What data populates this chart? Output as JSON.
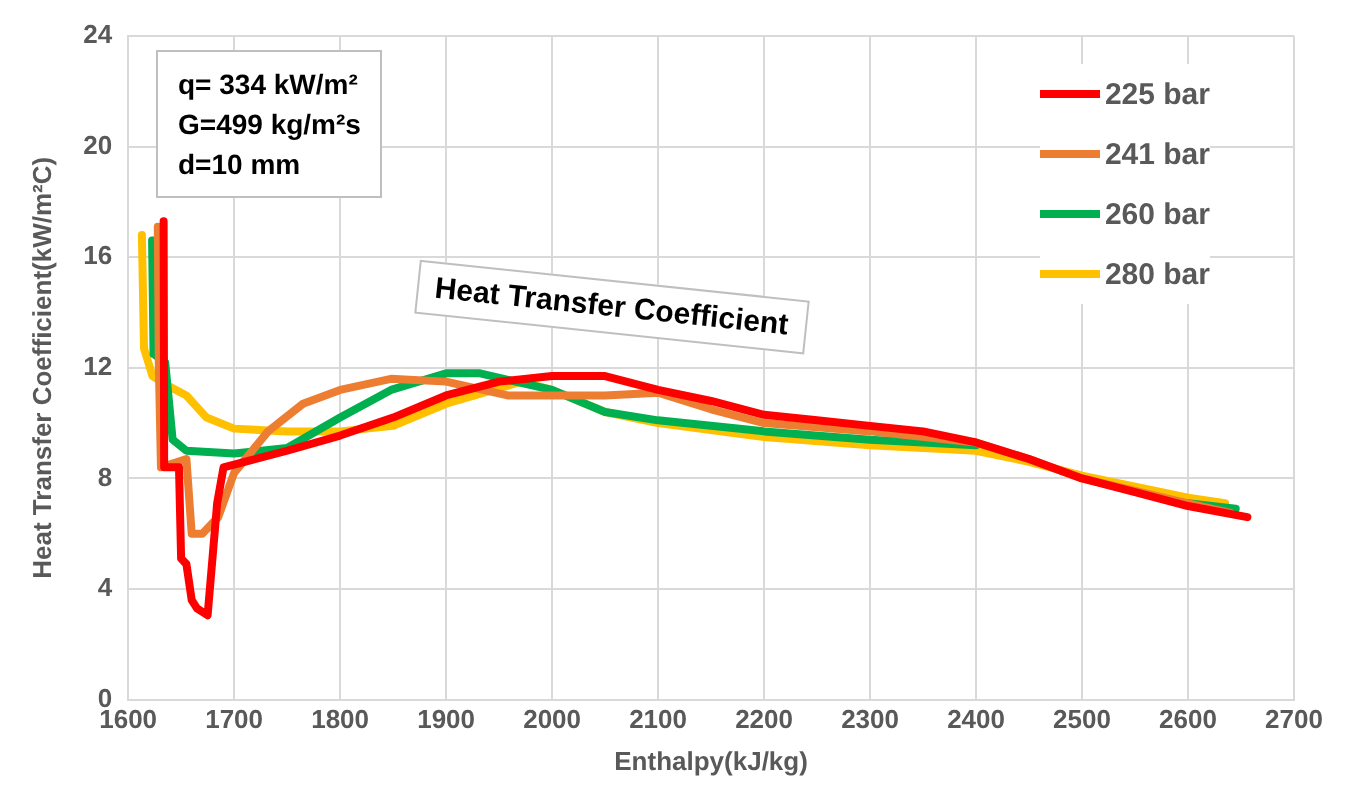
{
  "chart_data": {
    "type": "line",
    "xlabel": "Enthalpy(kJ/kg)",
    "ylabel": "Heat Transfer Coefficient(kW/m²C)",
    "xlim": [
      1600,
      2700
    ],
    "xticks": [
      1600,
      1700,
      1800,
      1900,
      2000,
      2100,
      2200,
      2300,
      2400,
      2500,
      2600,
      2700
    ],
    "ylim": [
      0,
      24
    ],
    "yticks": [
      0,
      4,
      8,
      12,
      16,
      20,
      24
    ],
    "grid": true,
    "legend": "top right",
    "marker": "none",
    "line_style": "solid",
    "annotations": [
      "q= 334 kW/m²\nG=499 kg/m²s\nd=10 mm",
      "Heat Transfer Coefficient"
    ],
    "series": [
      {
        "name": "225 bar",
        "color": "#ff0000",
        "x": [
          1633.5,
          1634,
          1648,
          1650,
          1655,
          1660,
          1665,
          1675,
          1684,
          1690,
          1700,
          1750,
          1800,
          1850,
          1900,
          1950,
          2000,
          2050,
          2100,
          2150,
          2200,
          2250,
          2300,
          2350,
          2400,
          2450,
          2500,
          2550,
          2600,
          2656
        ],
        "values": [
          17.3,
          8.4,
          8.4,
          5.1,
          4.9,
          3.6,
          3.3,
          3.05,
          7.1,
          8.4,
          8.5,
          9.0,
          9.55,
          10.2,
          11.0,
          11.5,
          11.7,
          11.7,
          11.2,
          10.8,
          10.3,
          10.1,
          9.9,
          9.7,
          9.3,
          8.7,
          8.0,
          7.5,
          7.0,
          6.6
        ]
      },
      {
        "name": "241 bar",
        "color": "#ed7d31",
        "x": [
          1628,
          1629,
          1631,
          1655,
          1660,
          1670,
          1685,
          1700,
          1732,
          1765,
          1800,
          1848,
          1900,
          1958,
          2000,
          2050,
          2100,
          2150,
          2200,
          2300,
          2400,
          2450,
          2500,
          2600,
          2640
        ],
        "values": [
          17.1,
          12.0,
          8.4,
          8.7,
          6.0,
          6.0,
          6.6,
          8.2,
          9.7,
          10.7,
          11.2,
          11.6,
          11.5,
          11.0,
          11.0,
          11.0,
          11.1,
          10.5,
          10.0,
          9.7,
          9.3,
          8.7,
          8.0,
          7.1,
          6.75
        ]
      },
      {
        "name": "260 bar",
        "color": "#00b050",
        "x": [
          1622.6,
          1624,
          1635,
          1642,
          1655,
          1700,
          1750,
          1800,
          1848,
          1900,
          1932,
          2000,
          2050,
          2100,
          2200,
          2300,
          2400,
          2450,
          2500,
          2600,
          2645
        ],
        "values": [
          16.6,
          12.5,
          12.2,
          9.4,
          9.0,
          8.9,
          9.1,
          10.2,
          11.2,
          11.8,
          11.8,
          11.2,
          10.4,
          10.1,
          9.7,
          9.4,
          9.2,
          null,
          null,
          7.1,
          6.9
        ]
      },
      {
        "name": "280 bar",
        "color": "#ffc000",
        "x": [
          1613,
          1615,
          1623,
          1640,
          1655,
          1674,
          1700,
          1750,
          1800,
          1850,
          1900,
          1971,
          2000,
          2050,
          2100,
          2200,
          2300,
          2400,
          2450,
          2500,
          2600,
          2635
        ],
        "values": [
          16.8,
          12.7,
          11.7,
          11.3,
          11.0,
          10.2,
          9.8,
          9.7,
          9.7,
          9.9,
          10.7,
          11.5,
          11.2,
          10.4,
          10.0,
          9.5,
          9.2,
          9.0,
          8.6,
          8.1,
          7.3,
          7.1
        ]
      }
    ]
  }
}
